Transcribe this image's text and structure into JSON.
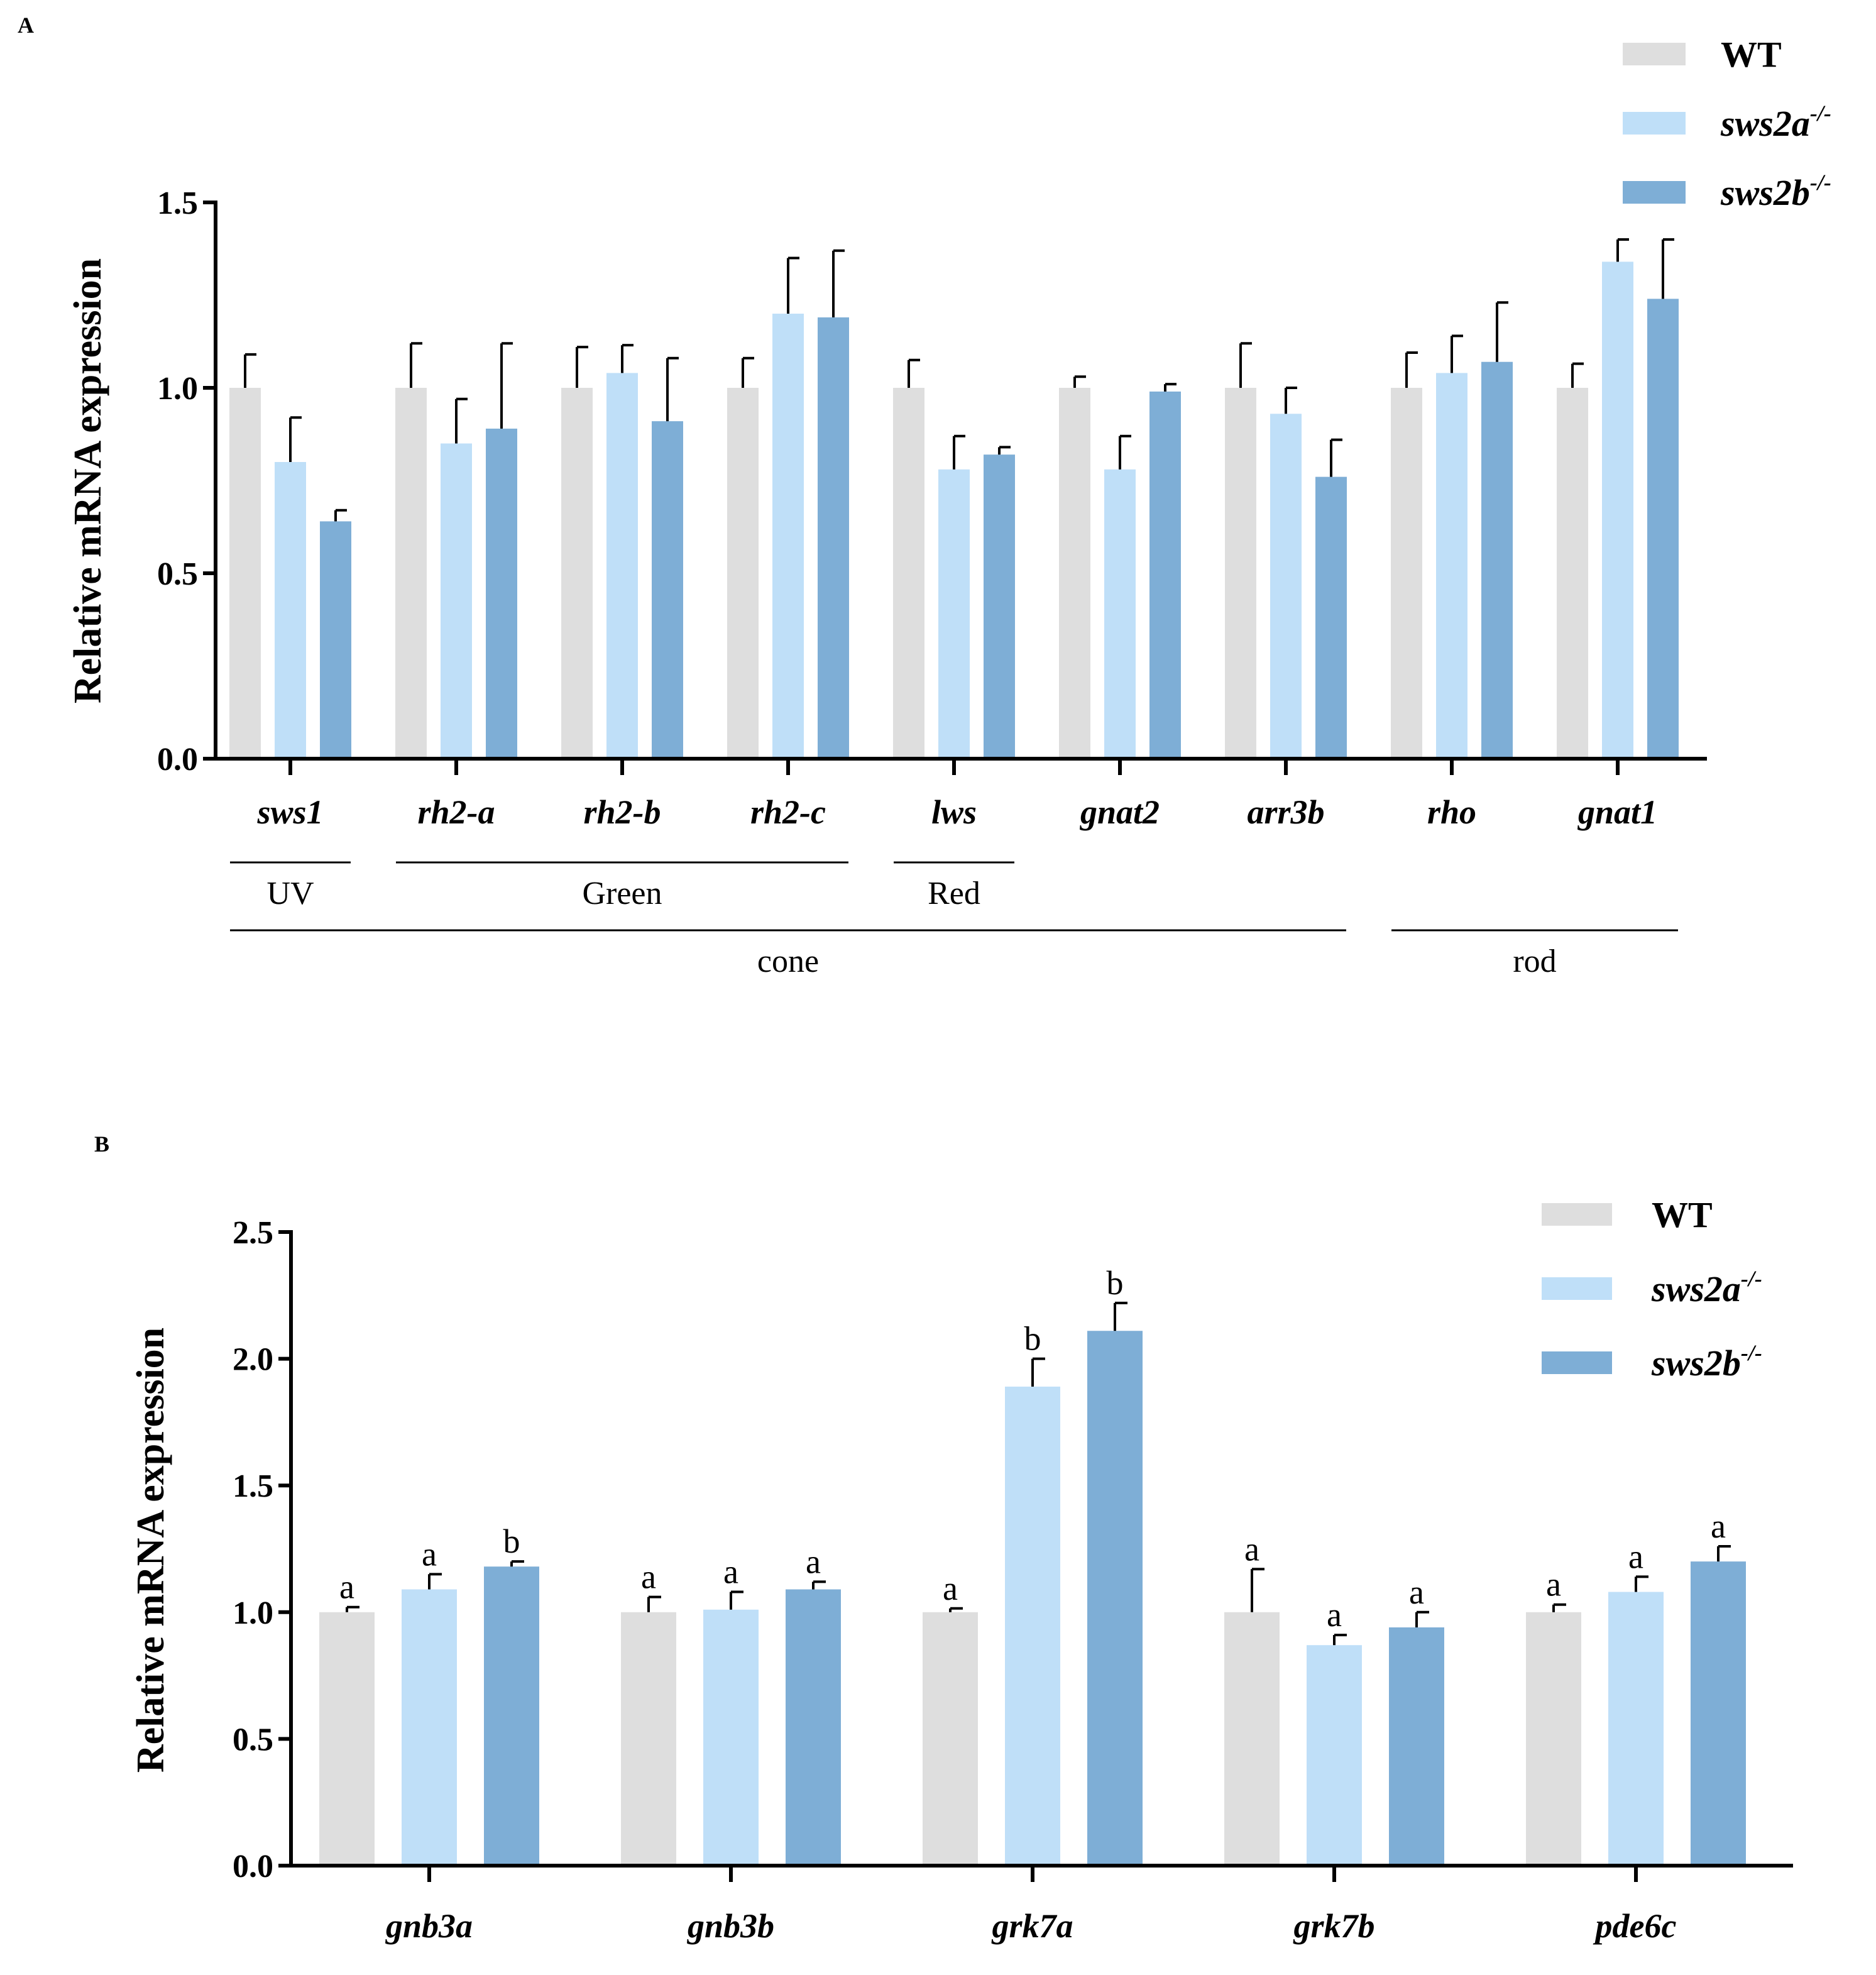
{
  "colors": {
    "WT": "#dedede",
    "sws2a": "#bfdff8",
    "sws2b": "#7eaed6",
    "axis": "#000000"
  },
  "legend_labels": [
    {
      "main": "WT",
      "sup": ""
    },
    {
      "main": "sws2a",
      "sup": "-/-"
    },
    {
      "main": "sws2b",
      "sup": "-/-"
    }
  ],
  "chart_data": [
    {
      "panel": "A",
      "type": "bar",
      "ylabel": "Relative mRNA expression",
      "ylim": [
        0,
        1.5
      ],
      "yticks": [
        "0.0",
        "0.5",
        "1.0",
        "1.5"
      ],
      "categories": [
        "sws1",
        "rh2-a",
        "rh2-b",
        "rh2-c",
        "lws",
        "gnat2",
        "arr3b",
        "rho",
        "gnat1"
      ],
      "series": [
        {
          "name": "WT",
          "values": [
            1.0,
            1.0,
            1.0,
            1.0,
            1.0,
            1.0,
            1.0,
            1.0,
            1.0
          ],
          "errors": [
            0.09,
            0.12,
            0.11,
            0.08,
            0.075,
            0.03,
            0.12,
            0.095,
            0.065
          ]
        },
        {
          "name": "sws2a-/-",
          "values": [
            0.8,
            0.85,
            1.04,
            1.2,
            0.78,
            0.78,
            0.93,
            1.04,
            1.34
          ],
          "errors": [
            0.12,
            0.12,
            0.075,
            0.15,
            0.09,
            0.09,
            0.07,
            0.1,
            0.06
          ]
        },
        {
          "name": "sws2b-/-",
          "values": [
            0.64,
            0.89,
            0.91,
            1.19,
            0.82,
            0.99,
            0.76,
            1.07,
            1.24
          ],
          "errors": [
            0.03,
            0.23,
            0.17,
            0.18,
            0.02,
            0.02,
            0.1,
            0.16,
            0.16
          ]
        }
      ],
      "groups": [
        {
          "label": "UV",
          "from": 0,
          "to": 0,
          "row": 1
        },
        {
          "label": "Green",
          "from": 1,
          "to": 3,
          "row": 1
        },
        {
          "label": "Red",
          "from": 4,
          "to": 4,
          "row": 1
        },
        {
          "label": "cone",
          "from": 0,
          "to": 6,
          "row": 2
        },
        {
          "label": "rod",
          "from": 7,
          "to": 8,
          "row": 2
        }
      ]
    },
    {
      "panel": "B",
      "type": "bar",
      "ylabel": "Relative mRNA expression",
      "ylim": [
        0,
        2.5
      ],
      "yticks": [
        "0.0",
        "0.5",
        "1.0",
        "1.5",
        "2.0",
        "2.5"
      ],
      "categories": [
        "gnb3a",
        "gnb3b",
        "grk7a",
        "grk7b",
        "pde6c"
      ],
      "series": [
        {
          "name": "WT",
          "values": [
            1.0,
            1.0,
            1.0,
            1.0,
            1.0
          ],
          "errors": [
            0.02,
            0.06,
            0.015,
            0.17,
            0.03
          ],
          "letters": [
            "a",
            "a",
            "a",
            "a",
            "a"
          ]
        },
        {
          "name": "sws2a-/-",
          "values": [
            1.09,
            1.01,
            1.89,
            0.87,
            1.08
          ],
          "errors": [
            0.06,
            0.07,
            0.11,
            0.04,
            0.06
          ],
          "letters": [
            "a",
            "a",
            "b",
            "a",
            "a"
          ]
        },
        {
          "name": "sws2b-/-",
          "values": [
            1.18,
            1.09,
            2.11,
            0.94,
            1.2
          ],
          "errors": [
            0.02,
            0.03,
            0.11,
            0.06,
            0.06
          ],
          "letters": [
            "b",
            "a",
            "b",
            "a",
            "a"
          ]
        }
      ]
    }
  ]
}
